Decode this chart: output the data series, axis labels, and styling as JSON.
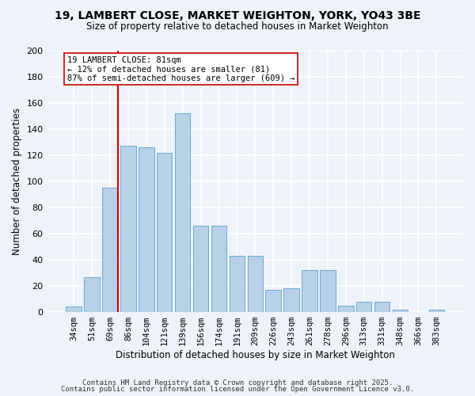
{
  "title1": "19, LAMBERT CLOSE, MARKET WEIGHTON, YORK, YO43 3BE",
  "title2": "Size of property relative to detached houses in Market Weighton",
  "xlabel": "Distribution of detached houses by size in Market Weighton",
  "ylabel": "Number of detached properties",
  "bar_labels": [
    "34sqm",
    "51sqm",
    "69sqm",
    "86sqm",
    "104sqm",
    "121sqm",
    "139sqm",
    "156sqm",
    "174sqm",
    "191sqm",
    "209sqm",
    "226sqm",
    "243sqm",
    "261sqm",
    "278sqm",
    "296sqm",
    "313sqm",
    "331sqm",
    "348sqm",
    "366sqm",
    "383sqm"
  ],
  "bar_values": [
    4,
    27,
    95,
    127,
    126,
    122,
    152,
    66,
    66,
    43,
    43,
    17,
    18,
    32,
    32,
    5,
    8,
    8,
    2,
    0,
    2
  ],
  "bar_color": "#b8d0e8",
  "bar_edge_color": "#6aaad4",
  "vline_color": "#cc0000",
  "annotation_text": "19 LAMBERT CLOSE: 81sqm\n← 12% of detached houses are smaller (81)\n87% of semi-detached houses are larger (609) →",
  "annotation_box_color": "#ffffff",
  "annotation_box_edge": "#cc0000",
  "ylim": [
    0,
    200
  ],
  "yticks": [
    0,
    20,
    40,
    60,
    80,
    100,
    120,
    140,
    160,
    180,
    200
  ],
  "footer1": "Contains HM Land Registry data © Crown copyright and database right 2025.",
  "footer2": "Contains public sector information licensed under the Open Government Licence v3.0.",
  "bg_color": "#eef2f9",
  "grid_color": "#ffffff"
}
